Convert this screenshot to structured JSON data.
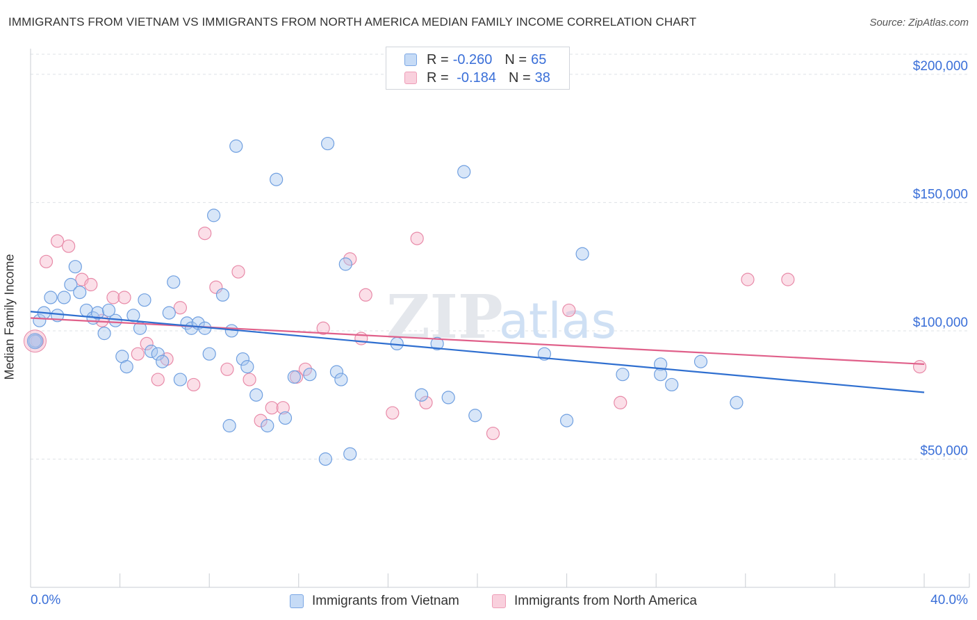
{
  "header": {
    "title": "IMMIGRANTS FROM VIETNAM VS IMMIGRANTS FROM NORTH AMERICA MEDIAN FAMILY INCOME CORRELATION CHART",
    "source": "Source: ZipAtlas.com"
  },
  "legend": {
    "rows": [
      {
        "r_label": "R =",
        "r_value": "-0.260",
        "n_label": "N =",
        "n_value": "65",
        "color": "#a9c8f0"
      },
      {
        "r_label": "R =",
        "r_value": " -0.184",
        "n_label": "N =",
        "n_value": "38",
        "color": "#f6b8cb"
      }
    ]
  },
  "bottom_legend": [
    {
      "label": "Immigrants from Vietnam",
      "color": "#a9c8f0"
    },
    {
      "label": "Immigrants from North America",
      "color": "#f6b8cb"
    }
  ],
  "colors": {
    "vietnam_fill": "#a9c8f0",
    "vietnam_stroke": "#6f9fe0",
    "vietnam_line": "#2f6fd0",
    "na_fill": "#f6b8cb",
    "na_stroke": "#e88aa8",
    "na_line": "#e0608a",
    "axis_text": "#3a6fd8",
    "grid": "#dde1e6"
  },
  "watermark": {
    "zip": "ZIP",
    "atlas": "atlas"
  },
  "chart_data": {
    "type": "scatter",
    "title": "IMMIGRANTS FROM VIETNAM VS IMMIGRANTS FROM NORTH AMERICA MEDIAN FAMILY INCOME CORRELATION CHART",
    "xlabel": "",
    "ylabel": "Median Family Income",
    "xlim": [
      0,
      40
    ],
    "ylim": [
      0,
      210000
    ],
    "x_tick_labels": [
      "0.0%",
      "40.0%"
    ],
    "y_ticks": [
      50000,
      100000,
      150000,
      200000
    ],
    "y_tick_labels": [
      "$50,000",
      "$100,000",
      "$150,000",
      "$200,000"
    ],
    "grid": true,
    "legend_position": "top-center",
    "series": [
      {
        "name": "Immigrants from Vietnam",
        "trend": {
          "x": [
            0,
            40
          ],
          "y": [
            107500,
            76000
          ]
        },
        "points": [
          [
            0.2,
            96000
          ],
          [
            0.4,
            104000
          ],
          [
            0.6,
            107000
          ],
          [
            0.9,
            113000
          ],
          [
            1.2,
            106000
          ],
          [
            1.5,
            113000
          ],
          [
            1.8,
            118000
          ],
          [
            2.0,
            125000
          ],
          [
            2.2,
            115000
          ],
          [
            2.5,
            108000
          ],
          [
            2.8,
            105000
          ],
          [
            3.0,
            107000
          ],
          [
            3.3,
            99000
          ],
          [
            3.5,
            108000
          ],
          [
            3.8,
            104000
          ],
          [
            4.1,
            90000
          ],
          [
            4.3,
            86000
          ],
          [
            4.6,
            106000
          ],
          [
            4.9,
            101000
          ],
          [
            5.1,
            112000
          ],
          [
            5.4,
            92000
          ],
          [
            5.7,
            91000
          ],
          [
            5.9,
            88000
          ],
          [
            6.2,
            107000
          ],
          [
            6.4,
            119000
          ],
          [
            6.7,
            81000
          ],
          [
            7.0,
            103000
          ],
          [
            7.2,
            101000
          ],
          [
            7.5,
            103000
          ],
          [
            7.8,
            101000
          ],
          [
            8.0,
            91000
          ],
          [
            8.2,
            145000
          ],
          [
            8.6,
            114000
          ],
          [
            9.0,
            100000
          ],
          [
            9.2,
            172000
          ],
          [
            9.5,
            89000
          ],
          [
            9.7,
            86000
          ],
          [
            10.1,
            75000
          ],
          [
            10.6,
            63000
          ],
          [
            11.0,
            159000
          ],
          [
            11.4,
            66000
          ],
          [
            11.8,
            82000
          ],
          [
            12.5,
            83000
          ],
          [
            13.2,
            50000
          ],
          [
            13.3,
            173000
          ],
          [
            13.7,
            84000
          ],
          [
            13.9,
            81000
          ],
          [
            14.1,
            126000
          ],
          [
            14.3,
            52000
          ],
          [
            16.4,
            95000
          ],
          [
            17.5,
            75000
          ],
          [
            18.2,
            95000
          ],
          [
            18.7,
            74000
          ],
          [
            19.4,
            162000
          ],
          [
            19.9,
            67000
          ],
          [
            23.0,
            91000
          ],
          [
            24.0,
            65000
          ],
          [
            24.7,
            130000
          ],
          [
            26.5,
            83000
          ],
          [
            28.2,
            87000
          ],
          [
            28.2,
            83000
          ],
          [
            28.7,
            79000
          ],
          [
            30.0,
            88000
          ],
          [
            31.6,
            72000
          ],
          [
            8.9,
            63000
          ]
        ]
      },
      {
        "name": "Immigrants from North America",
        "trend": {
          "x": [
            0,
            40
          ],
          "y": [
            105000,
            87000
          ]
        },
        "points": [
          [
            0.3,
            96000
          ],
          [
            0.7,
            127000
          ],
          [
            1.2,
            135000
          ],
          [
            1.7,
            133000
          ],
          [
            2.3,
            120000
          ],
          [
            2.7,
            118000
          ],
          [
            3.2,
            104000
          ],
          [
            3.7,
            113000
          ],
          [
            4.2,
            113000
          ],
          [
            4.8,
            91000
          ],
          [
            5.2,
            95000
          ],
          [
            5.7,
            81000
          ],
          [
            6.1,
            89000
          ],
          [
            6.7,
            109000
          ],
          [
            7.3,
            79000
          ],
          [
            7.8,
            138000
          ],
          [
            8.3,
            117000
          ],
          [
            8.8,
            85000
          ],
          [
            9.3,
            123000
          ],
          [
            9.8,
            81000
          ],
          [
            10.3,
            65000
          ],
          [
            10.8,
            70000
          ],
          [
            11.3,
            70000
          ],
          [
            11.9,
            82000
          ],
          [
            12.3,
            85000
          ],
          [
            13.1,
            101000
          ],
          [
            14.3,
            128000
          ],
          [
            14.8,
            97000
          ],
          [
            15.0,
            114000
          ],
          [
            16.2,
            68000
          ],
          [
            17.3,
            136000
          ],
          [
            17.7,
            72000
          ],
          [
            20.7,
            60000
          ],
          [
            24.1,
            108000
          ],
          [
            26.4,
            72000
          ],
          [
            32.1,
            120000
          ],
          [
            33.9,
            120000
          ],
          [
            39.8,
            86000
          ]
        ]
      }
    ]
  }
}
